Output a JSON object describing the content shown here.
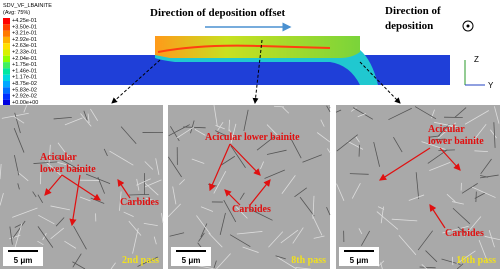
{
  "legend": {
    "title": "SDV_VF_LBAINITE",
    "subtitle": "(Avg: 75%)",
    "entries": [
      "+4.25e-01",
      "+3.50e-01",
      "+3.21e-01",
      "+2.92e-01",
      "+2.63e-01",
      "+2.33e-01",
      "+2.04e-01",
      "+1.75e-01",
      "+1.46e-01",
      "+1.17e-01",
      "+8.75e-02",
      "+5.83e-02",
      "+2.92e-02",
      "+0.00e+00"
    ]
  },
  "annotations": {
    "offset": "Direction of deposition offset",
    "deposition": [
      "Direction of",
      "deposition"
    ],
    "axis_z": "Z",
    "axis_y": "Y"
  },
  "panels": [
    {
      "bainite": [
        "Acicular",
        "lower bainite"
      ],
      "carbides": "Carbides",
      "scale": "5 μm",
      "pass": "2nd pass"
    },
    {
      "bainite": [
        "Acicular lower bainite"
      ],
      "carbides": "Carbides",
      "scale": "5 μm",
      "pass": "8th pass"
    },
    {
      "bainite": [
        "Acicular",
        "lower bainite"
      ],
      "carbides": "Carbides",
      "scale": "5 μm",
      "pass": "16th pass"
    }
  ]
}
